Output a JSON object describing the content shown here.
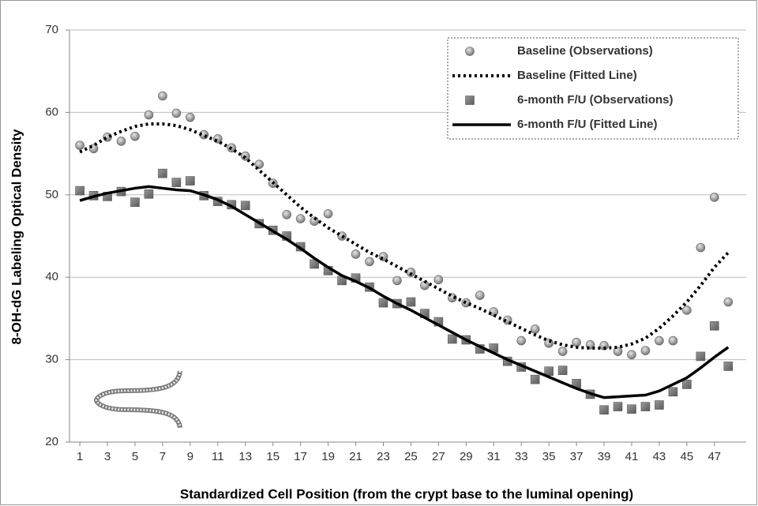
{
  "chart_data": {
    "type": "line",
    "x_label": "Standardized Cell Position (from the crypt base to the luminal opening)",
    "y_label": "8-OH-dG Labeling Optical Density",
    "x": [
      1,
      2,
      3,
      4,
      5,
      6,
      7,
      8,
      9,
      10,
      11,
      12,
      13,
      14,
      15,
      16,
      17,
      18,
      19,
      20,
      21,
      22,
      23,
      24,
      25,
      26,
      27,
      28,
      29,
      30,
      31,
      32,
      33,
      34,
      35,
      36,
      37,
      38,
      39,
      40,
      41,
      42,
      43,
      44,
      45,
      46,
      47,
      48
    ],
    "xlim": [
      0.25,
      49.3
    ],
    "xticks": [
      1,
      3,
      5,
      7,
      9,
      11,
      13,
      15,
      17,
      19,
      21,
      23,
      25,
      27,
      29,
      31,
      33,
      35,
      37,
      39,
      41,
      43,
      45,
      47
    ],
    "ylim": [
      20,
      70
    ],
    "yticks": [
      20,
      30,
      40,
      50,
      60,
      70
    ],
    "grid": true,
    "legend": "top-right",
    "series": [
      {
        "name": "Baseline (Observations)",
        "color": "#8c8c8c",
        "style": "markers",
        "marker": "circle",
        "values": [
          56.0,
          55.6,
          57.0,
          56.5,
          57.1,
          59.7,
          62.0,
          59.9,
          59.4,
          57.3,
          56.8,
          55.7,
          54.7,
          53.7,
          51.4,
          47.6,
          47.1,
          46.8,
          47.7,
          45.0,
          42.8,
          41.9,
          42.5,
          39.6,
          40.6,
          39.0,
          39.7,
          37.5,
          36.9,
          37.8,
          35.8,
          34.8,
          32.3,
          33.7,
          32.0,
          31.0,
          32.1,
          31.8,
          31.7,
          31.0,
          30.6,
          31.1,
          32.3,
          32.3,
          36.0,
          43.6,
          49.7,
          37.0
        ]
      },
      {
        "name": "Baseline (Fitted Line)",
        "color": "#000000",
        "style": "dotted",
        "values": [
          55.2,
          56.0,
          57.0,
          57.7,
          58.3,
          58.6,
          58.6,
          58.4,
          57.9,
          57.2,
          56.5,
          55.6,
          54.5,
          53.0,
          51.5,
          50.0,
          48.5,
          47.2,
          46.0,
          45.0,
          44.0,
          43.0,
          42.2,
          41.3,
          40.4,
          39.5,
          38.6,
          37.7,
          36.9,
          36.2,
          35.4,
          34.6,
          33.8,
          33.0,
          32.3,
          31.8,
          31.5,
          31.4,
          31.4,
          31.5,
          31.9,
          32.6,
          33.8,
          35.3,
          37.0,
          39.0,
          41.2,
          43.0
        ]
      },
      {
        "name": "6-month F/U (Observations)",
        "color": "#7f7f7f",
        "style": "markers",
        "marker": "square",
        "values": [
          50.5,
          49.9,
          49.8,
          50.4,
          49.1,
          50.1,
          52.6,
          51.5,
          51.7,
          49.9,
          49.2,
          48.8,
          48.7,
          46.5,
          45.7,
          45.0,
          43.7,
          41.6,
          40.8,
          39.6,
          39.9,
          38.8,
          36.9,
          36.8,
          37.0,
          35.6,
          34.6,
          32.5,
          32.4,
          31.3,
          31.4,
          29.8,
          29.1,
          27.6,
          28.6,
          28.7,
          27.1,
          25.8,
          23.9,
          24.3,
          24.0,
          24.3,
          24.5,
          26.1,
          27.0,
          30.4,
          34.1,
          29.2
        ]
      },
      {
        "name": "6-month F/U (Fitted Line)",
        "color": "#000000",
        "style": "solid",
        "values": [
          49.3,
          49.8,
          50.2,
          50.5,
          50.8,
          51.0,
          50.8,
          50.6,
          50.5,
          50.0,
          49.4,
          48.6,
          47.6,
          46.6,
          45.6,
          44.6,
          43.5,
          42.3,
          41.2,
          40.2,
          39.5,
          38.7,
          37.7,
          36.8,
          36.0,
          35.1,
          34.2,
          33.3,
          32.4,
          31.6,
          30.8,
          30.0,
          29.3,
          28.6,
          27.9,
          27.2,
          26.5,
          25.9,
          25.4,
          25.5,
          25.6,
          25.7,
          26.2,
          27.0,
          27.8,
          29.0,
          30.3,
          31.5
        ]
      }
    ]
  }
}
